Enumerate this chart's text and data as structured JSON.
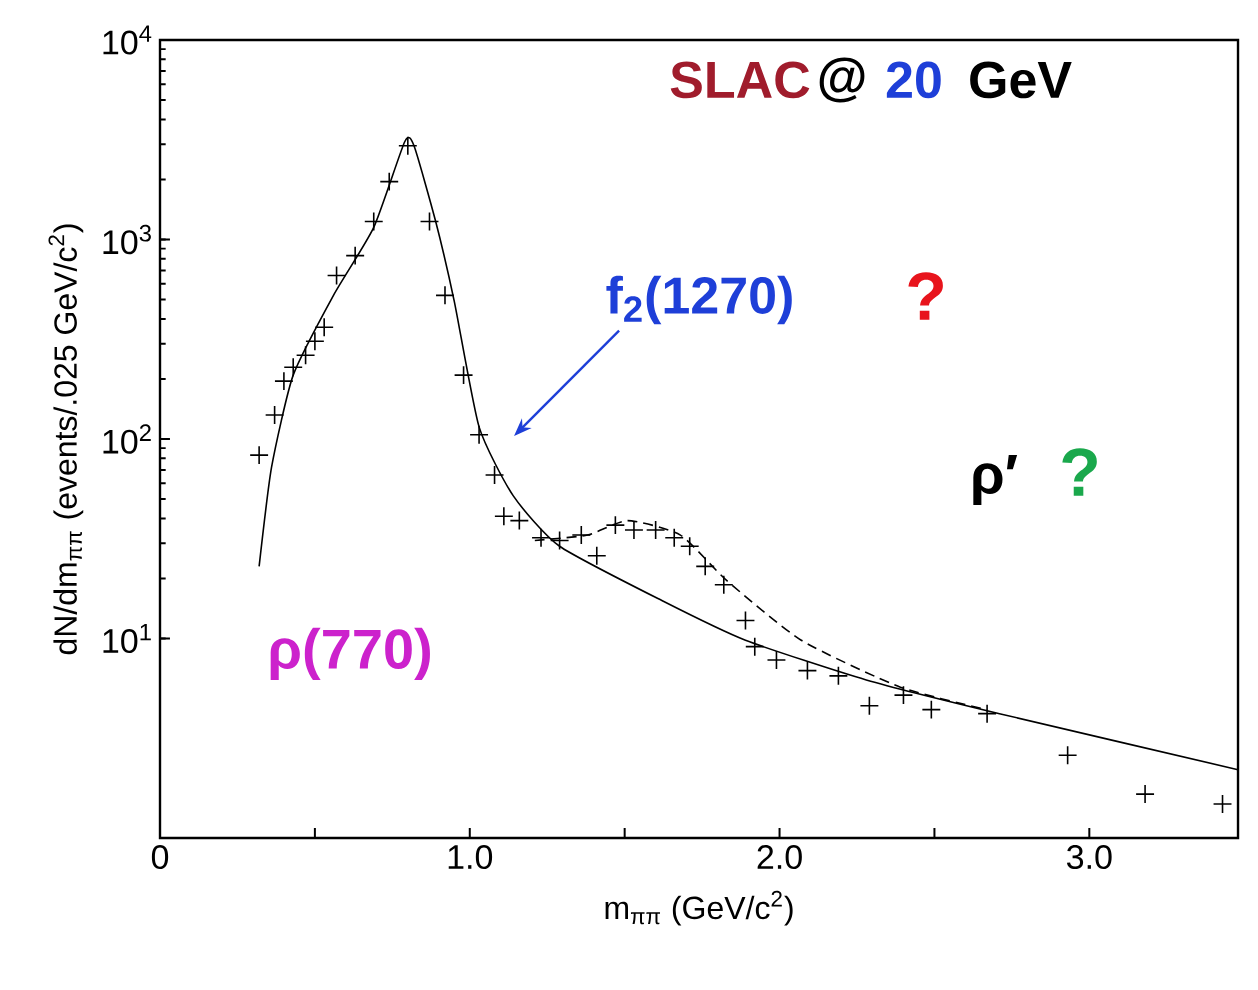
{
  "chart_data": {
    "type": "scatter",
    "xlabel": "m$_{ππ}$   (GeV/c$^{2}$)",
    "ylabel": "dN/dm$_{ππ}$   (events/.025 GeV/c$^{2}$)",
    "xlim": [
      0,
      3.48
    ],
    "ylim": [
      1,
      10000
    ],
    "log": "y",
    "grid": false,
    "xticks": [
      {
        "value": 0,
        "label": "0"
      },
      {
        "value": 0.5,
        "label": null
      },
      {
        "value": 1.0,
        "label": "1.0"
      },
      {
        "value": 1.5,
        "label": null
      },
      {
        "value": 2.0,
        "label": "2.0"
      },
      {
        "value": 2.5,
        "label": null
      },
      {
        "value": 3.0,
        "label": "3.0"
      }
    ],
    "yticks": [
      {
        "value": 10,
        "label": "10$^{1}$"
      },
      {
        "value": 100,
        "label": "10$^{2}$"
      },
      {
        "value": 1000,
        "label": "10$^{3}$"
      },
      {
        "value": 10000,
        "label": "10$^{4}$"
      }
    ],
    "series": [
      {
        "marker": "cross",
        "color": "#000000",
        "x": [
          0.32,
          0.37,
          0.4,
          0.43,
          0.47,
          0.5,
          0.53,
          0.57,
          0.63,
          0.69,
          0.74,
          0.8,
          0.87,
          0.92,
          0.98,
          1.03,
          1.08,
          1.11,
          1.16,
          1.23,
          1.29,
          1.36,
          1.41,
          1.47,
          1.53,
          1.6,
          1.66,
          1.71,
          1.76,
          1.82,
          1.89,
          1.92,
          1.99,
          2.09,
          2.19,
          2.29,
          2.4,
          2.49,
          2.67,
          2.93,
          3.18,
          3.43
        ],
        "values": [
          83,
          132,
          195,
          229,
          263,
          309,
          363,
          660,
          830,
          1230,
          1950,
          2950,
          1230,
          525,
          209,
          105,
          66,
          41,
          39,
          32,
          31,
          33,
          26,
          37,
          35,
          35,
          32,
          29,
          23,
          18.6,
          12.3,
          9.1,
          7.8,
          6.9,
          6.5,
          4.6,
          5.2,
          4.4,
          4.2,
          2.6,
          1.66,
          1.48
        ]
      },
      {
        "type": "line",
        "line_style": "solid",
        "color": "#000000",
        "x": [
          0.32,
          0.36,
          0.43,
          0.56,
          0.69,
          0.79,
          0.82,
          0.89,
          0.95,
          1.03,
          1.14,
          1.29,
          1.62,
          1.89,
          2.28,
          2.71,
          3.48
        ],
        "values": [
          23,
          72,
          209,
          525,
          1150,
          3090,
          2950,
          1230,
          490,
          115,
          52,
          29,
          15.5,
          9.8,
          6.2,
          4.2,
          2.2
        ]
      },
      {
        "type": "line",
        "line_style": "dashed",
        "color": "#000000",
        "x": [
          1.21,
          1.38,
          1.51,
          1.68,
          1.83,
          2.07,
          2.39,
          2.67
        ],
        "values": [
          31,
          33,
          39,
          33,
          19.5,
          9.8,
          5.7,
          4.4
        ]
      }
    ],
    "annotations": [
      "SLAC",
      "@",
      "20",
      "GeV",
      "f$_{2}$(1270)",
      "?",
      "ρ′",
      "?",
      "ρ(770)"
    ]
  }
}
